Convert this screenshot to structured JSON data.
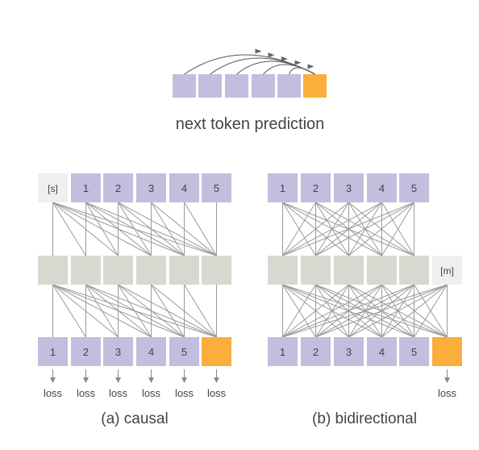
{
  "top": {
    "caption": "next token prediction",
    "token_count": 6,
    "arc_count": 5
  },
  "causal": {
    "caption": "(a) causal",
    "start_token": "[s]",
    "input_tokens": [
      "1",
      "2",
      "3",
      "4",
      "5"
    ],
    "output_tokens": [
      "1",
      "2",
      "3",
      "4",
      "5"
    ],
    "loss_labels": [
      "loss",
      "loss",
      "loss",
      "loss",
      "loss",
      "loss"
    ]
  },
  "bidirectional": {
    "caption": "(b) bidirectional",
    "input_tokens": [
      "1",
      "2",
      "3",
      "4",
      "5"
    ],
    "mask_token": "[m]",
    "output_tokens": [
      "1",
      "2",
      "3",
      "4",
      "5"
    ],
    "loss_labels": [
      "loss"
    ]
  },
  "colors": {
    "token": "#c1bede",
    "target": "#fbae3c",
    "hidden": "#d9d8d0",
    "special": "#efefef",
    "line": "#9a9a9a",
    "text": "#444444"
  }
}
